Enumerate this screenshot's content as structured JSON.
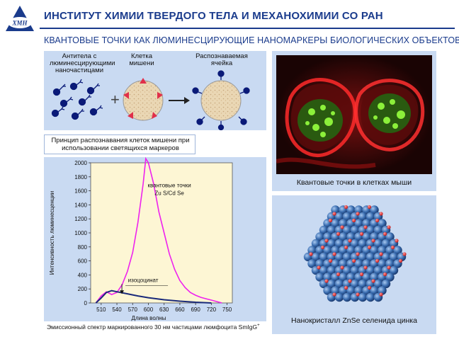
{
  "header": {
    "title": "ИНСТИТУТ ХИМИИ ТВЕРДОГО ТЕЛА И МЕХАНОХИМИИ СО РАН",
    "subtitle": "КВАНТОВЫЕ ТОЧКИ КАК ЛЮМИНЕСЦИРУЮЩИЕ НАНОМАРКЕРЫ БИОЛОГИЧЕСКИХ ОБЪЕКТОВ",
    "logo_text": "ХМН"
  },
  "diagram": {
    "label_antibodies": "Антитела с люминесцирующими наночастицами",
    "label_cell": "Клетка мишени",
    "label_recognized": "Распознаваемая ячейка",
    "plus": "+",
    "caption": "Принцип распознавания клеток мишени при использовании светящихся маркеров"
  },
  "chart_data": {
    "type": "line",
    "xlabel": "Длина волны",
    "ylabel": "Интенсивность люминесценции",
    "xlim": [
      490,
      760
    ],
    "ylim": [
      0,
      2000
    ],
    "x_ticks": [
      510,
      540,
      570,
      600,
      630,
      660,
      690,
      720,
      750
    ],
    "y_ticks": [
      0,
      200,
      400,
      600,
      800,
      1000,
      1200,
      1400,
      1600,
      1800,
      2000
    ],
    "series": [
      {
        "name": "квантовые точки Zu S/Cd Se",
        "color": "#ee22ee",
        "x": [
          500,
          510,
          520,
          530,
          540,
          550,
          560,
          570,
          580,
          590,
          595,
          600,
          610,
          620,
          630,
          640,
          650,
          660,
          670,
          680,
          690,
          700,
          710,
          720,
          730,
          740
        ],
        "y": [
          0,
          100,
          160,
          120,
          150,
          260,
          450,
          720,
          1150,
          1700,
          2060,
          2000,
          1700,
          1300,
          1000,
          700,
          480,
          320,
          220,
          150,
          110,
          80,
          60,
          40,
          20,
          0
        ]
      },
      {
        "name": "изоцоцинат",
        "color": "#1a2a7a",
        "x": [
          500,
          510,
          520,
          530,
          540,
          560,
          580,
          600,
          630,
          660,
          690,
          720
        ],
        "y": [
          0,
          70,
          150,
          175,
          160,
          130,
          100,
          75,
          45,
          25,
          10,
          0
        ]
      }
    ],
    "annotations": [
      {
        "text": "квантовые точки",
        "x": 640,
        "y": 1650
      },
      {
        "text": "Zu S/Cd Se",
        "x": 640,
        "y": 1540
      },
      {
        "text": "изоцоцинат",
        "x": 590,
        "y": 300
      }
    ],
    "caption": "Эмиссионный спектр маркированного 30 нм частицами люмфоцита SmIgG",
    "caption_sup": "+"
  },
  "photo": {
    "caption": "Квантовые точки в клетках мыши"
  },
  "crystal": {
    "caption": "Нанокристалл ZnSe селенида цинка"
  },
  "colors": {
    "brand": "#1a3b8c",
    "panel": "#c9daf2",
    "dark_blue": "#0a1a78",
    "marker_red": "#e0304a",
    "magenta": "#ee22ee"
  }
}
